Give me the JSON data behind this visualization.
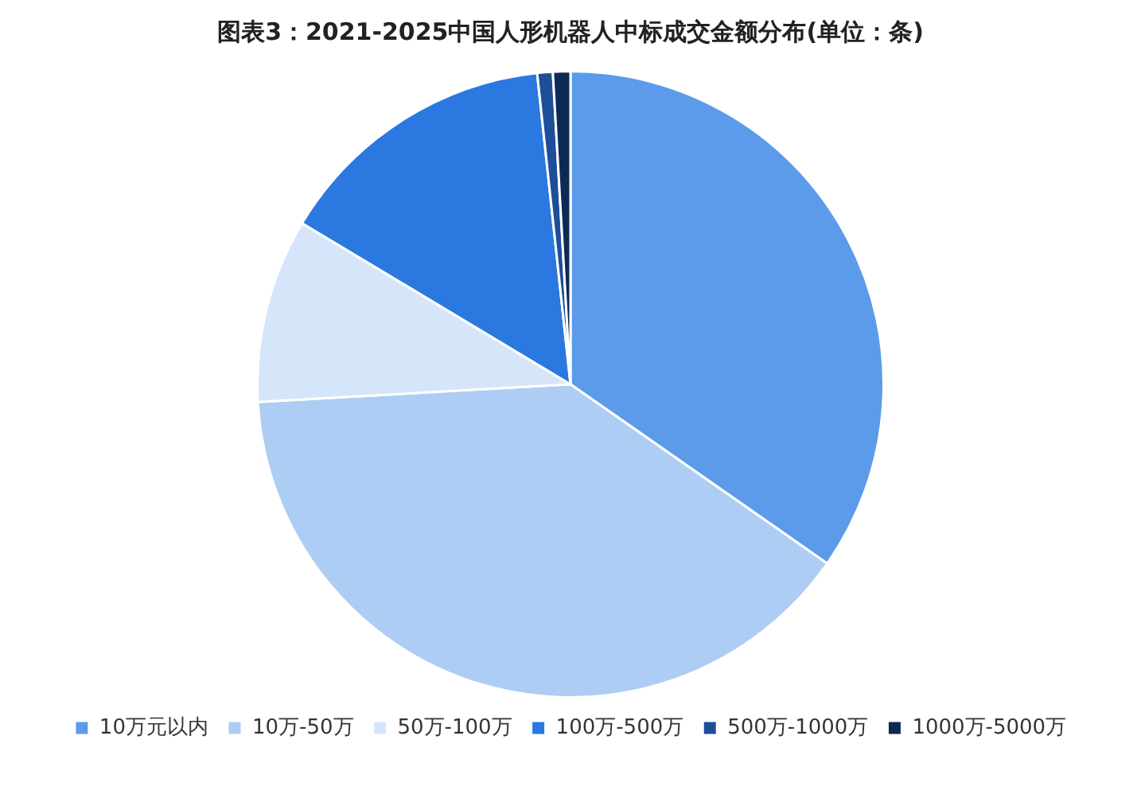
{
  "chart_data": {
    "type": "pie",
    "title": "图表3：2021-2025中国人形机器人中标成交金额分布(单位：条)",
    "categories": [
      "10万元以内",
      "10万-50万",
      "50万-100万",
      "100万-500万",
      "500万-1000万",
      "1000万-5000万"
    ],
    "values": [
      34.7,
      39.4,
      9.5,
      14.7,
      0.8,
      0.9
    ],
    "colors": [
      "#5b9bea",
      "#aecdf4",
      "#d6e6fa",
      "#2a78e0",
      "#1f4e99",
      "#0d2a55"
    ],
    "legend": "bottom"
  }
}
